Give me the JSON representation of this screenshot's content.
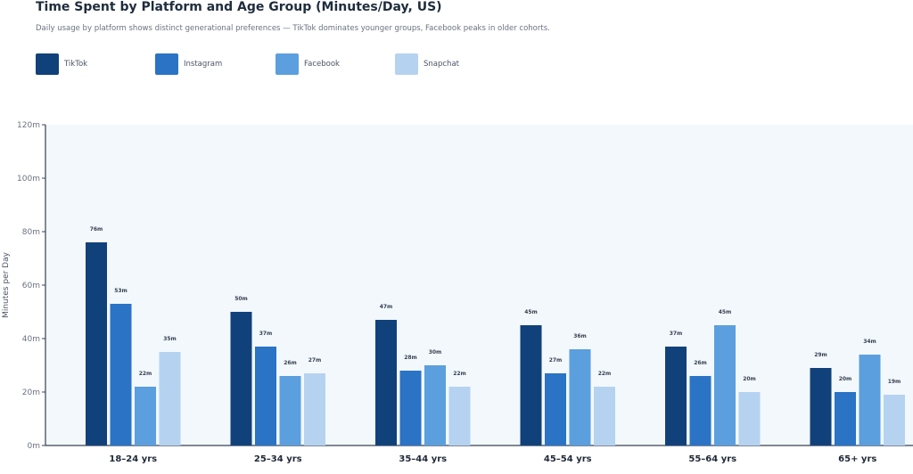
{
  "chart_data": {
    "type": "bar",
    "title": "Time Spent by Platform and Age Group (Minutes/Day, US)",
    "subtitle": "Daily usage by platform shows distinct generational preferences — TikTok dominates younger groups, Facebook peaks in older cohorts.",
    "ylabel": "Minutes per Day",
    "xlabel": "",
    "ylim": [
      0,
      120
    ],
    "yticks": [
      0,
      20,
      40,
      60,
      80,
      100,
      120
    ],
    "ytick_labels": [
      "0m",
      "20m",
      "40m",
      "60m",
      "80m",
      "100m",
      "120m"
    ],
    "categories": [
      "18–24 yrs",
      "25–34 yrs",
      "35–44 yrs",
      "45–54 yrs",
      "55–64 yrs",
      "65+ yrs"
    ],
    "series": [
      {
        "name": "TikTok",
        "color": "#11417a",
        "values": [
          76,
          50,
          47,
          45,
          37,
          29
        ]
      },
      {
        "name": "Instagram",
        "color": "#2a73c5",
        "values": [
          53,
          37,
          28,
          27,
          26,
          20
        ]
      },
      {
        "name": "Facebook",
        "color": "#5b9fde",
        "values": [
          22,
          26,
          30,
          36,
          45,
          34
        ]
      },
      {
        "name": "Snapchat",
        "color": "#b5d3f0",
        "values": [
          35,
          27,
          22,
          22,
          20,
          19
        ]
      }
    ],
    "value_suffix": "m",
    "legend_position": "top-left",
    "grid": false,
    "plot_background": "#f3f8fd"
  }
}
